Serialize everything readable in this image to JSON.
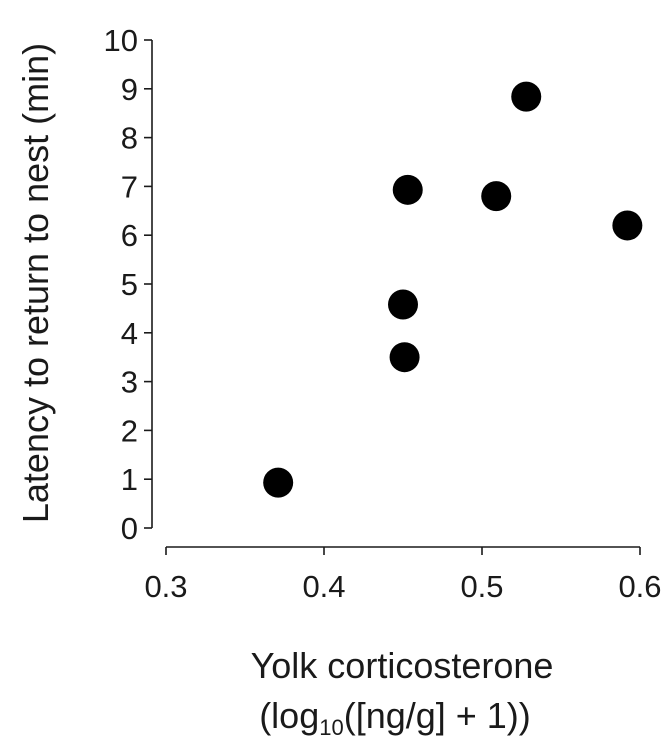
{
  "chart_data": {
    "type": "scatter",
    "xlabel_line1": "Yolk corticosterone",
    "xlabel_line2_pre": "(log",
    "xlabel_line2_sub": "10",
    "xlabel_line2_post": "([ng/g] + 1))",
    "ylabel": "Latency to return to nest (min)",
    "xlim": [
      0.3,
      0.6
    ],
    "ylim": [
      0,
      10
    ],
    "xticks": [
      "0.3",
      "0.4",
      "0.5",
      "0.6"
    ],
    "yticks": [
      "0",
      "1",
      "2",
      "3",
      "4",
      "5",
      "6",
      "7",
      "8",
      "9",
      "10"
    ],
    "grid": false,
    "marker_color": "#000000",
    "points": [
      {
        "x": 0.371,
        "y": 0.93
      },
      {
        "x": 0.45,
        "y": 4.58
      },
      {
        "x": 0.451,
        "y": 3.5
      },
      {
        "x": 0.453,
        "y": 6.93
      },
      {
        "x": 0.509,
        "y": 6.8
      },
      {
        "x": 0.528,
        "y": 8.84
      },
      {
        "x": 0.592,
        "y": 6.2
      }
    ]
  }
}
